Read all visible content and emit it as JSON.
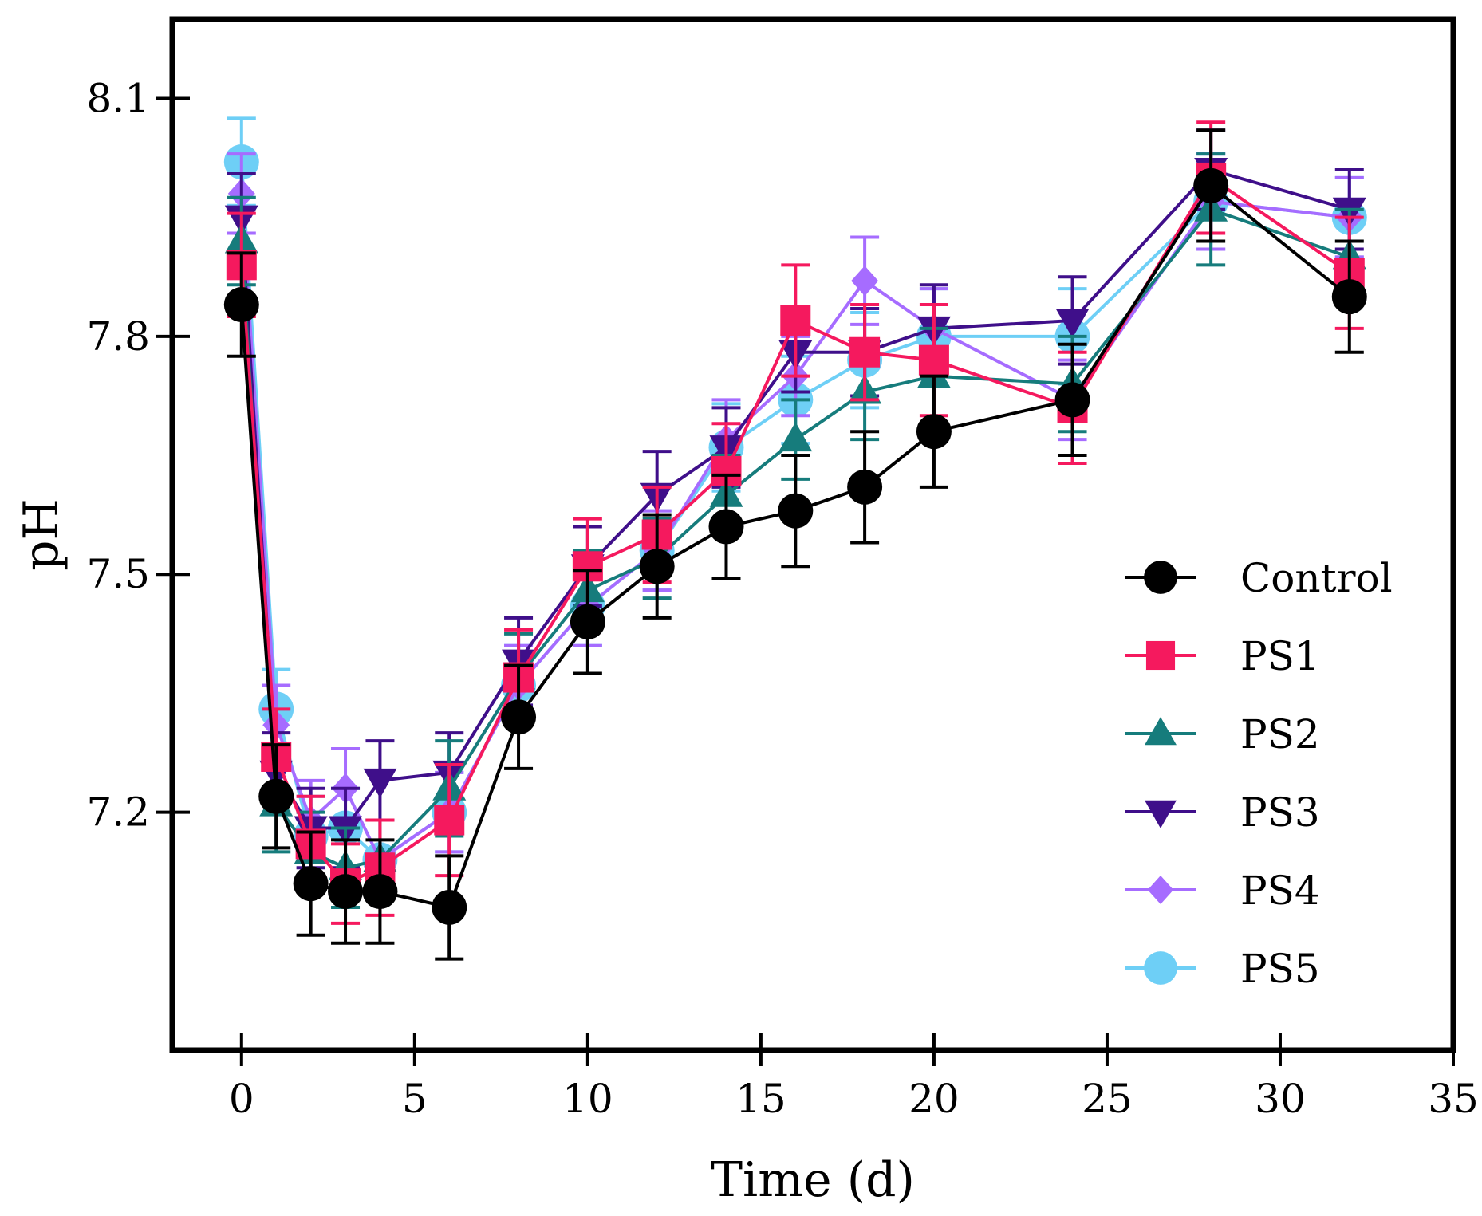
{
  "chart_data": {
    "type": "line",
    "title": "",
    "xlabel": "Time (d)",
    "ylabel": "pH",
    "xlim": [
      -2,
      35
    ],
    "ylim": [
      6.9,
      8.2
    ],
    "xticks": [
      0,
      5,
      10,
      15,
      20,
      25,
      30,
      35
    ],
    "yticks": [
      7.2,
      7.5,
      7.8,
      8.1
    ],
    "ytick_labels": [
      "7.2",
      "7.5",
      "7.8",
      "8.1"
    ],
    "grid": false,
    "legend_position": "right",
    "x": [
      0,
      1,
      2,
      3,
      4,
      6,
      8,
      10,
      12,
      14,
      16,
      18,
      20,
      24,
      28,
      32
    ],
    "series": [
      {
        "name": "PS5",
        "color": "#6ecff6",
        "marker": "circle",
        "values": [
          8.02,
          7.33,
          7.17,
          7.18,
          7.14,
          7.2,
          7.36,
          7.46,
          7.53,
          7.66,
          7.72,
          7.77,
          7.8,
          7.8,
          7.97,
          7.95
        ],
        "errors": [
          0.055,
          0.05,
          0.05,
          0.05,
          0.05,
          0.05,
          0.05,
          0.05,
          0.05,
          0.055,
          0.055,
          0.06,
          0.06,
          0.06,
          0.06,
          0.05
        ]
      },
      {
        "name": "PS4",
        "color": "#a66cff",
        "marker": "diamond",
        "values": [
          7.98,
          7.31,
          7.19,
          7.23,
          7.14,
          7.2,
          7.36,
          7.46,
          7.53,
          7.67,
          7.75,
          7.87,
          7.81,
          7.72,
          7.97,
          7.95
        ],
        "errors": [
          0.05,
          0.05,
          0.05,
          0.05,
          0.05,
          0.05,
          0.05,
          0.05,
          0.05,
          0.05,
          0.05,
          0.055,
          0.05,
          0.05,
          0.06,
          0.05
        ]
      },
      {
        "name": "PS3",
        "color": "#3f0f8a",
        "marker": "triangle-down",
        "values": [
          7.95,
          7.25,
          7.18,
          7.18,
          7.24,
          7.25,
          7.39,
          7.51,
          7.6,
          7.66,
          7.78,
          7.78,
          7.81,
          7.82,
          8.01,
          7.96
        ],
        "errors": [
          0.055,
          0.05,
          0.05,
          0.05,
          0.05,
          0.05,
          0.055,
          0.05,
          0.055,
          0.05,
          0.05,
          0.055,
          0.055,
          0.055,
          0.05,
          0.05
        ]
      },
      {
        "name": "PS2",
        "color": "#167c7c",
        "marker": "triangle-up",
        "values": [
          7.92,
          7.21,
          7.15,
          7.13,
          7.14,
          7.23,
          7.37,
          7.48,
          7.52,
          7.6,
          7.67,
          7.73,
          7.75,
          7.74,
          7.96,
          7.9
        ],
        "errors": [
          0.055,
          0.06,
          0.05,
          0.05,
          0.05,
          0.06,
          0.055,
          0.05,
          0.05,
          0.05,
          0.05,
          0.06,
          0.06,
          0.06,
          0.07,
          0.06
        ]
      },
      {
        "name": "PS1",
        "color": "#f5195e",
        "marker": "square",
        "values": [
          7.89,
          7.27,
          7.16,
          7.11,
          7.13,
          7.19,
          7.37,
          7.51,
          7.55,
          7.63,
          7.82,
          7.78,
          7.77,
          7.71,
          8.0,
          7.88
        ],
        "errors": [
          0.065,
          0.06,
          0.06,
          0.05,
          0.06,
          0.07,
          0.06,
          0.06,
          0.06,
          0.06,
          0.07,
          0.06,
          0.07,
          0.07,
          0.07,
          0.07
        ]
      },
      {
        "name": "Control",
        "color": "#000000",
        "marker": "circle",
        "values": [
          7.84,
          7.22,
          7.11,
          7.1,
          7.1,
          7.08,
          7.32,
          7.44,
          7.51,
          7.56,
          7.58,
          7.61,
          7.68,
          7.72,
          7.99,
          7.85
        ],
        "errors": [
          0.065,
          0.065,
          0.065,
          0.065,
          0.065,
          0.065,
          0.065,
          0.065,
          0.065,
          0.065,
          0.07,
          0.07,
          0.07,
          0.07,
          0.07,
          0.07
        ]
      }
    ],
    "legend_order": [
      "Control",
      "PS1",
      "PS2",
      "PS3",
      "PS4",
      "PS5"
    ]
  }
}
